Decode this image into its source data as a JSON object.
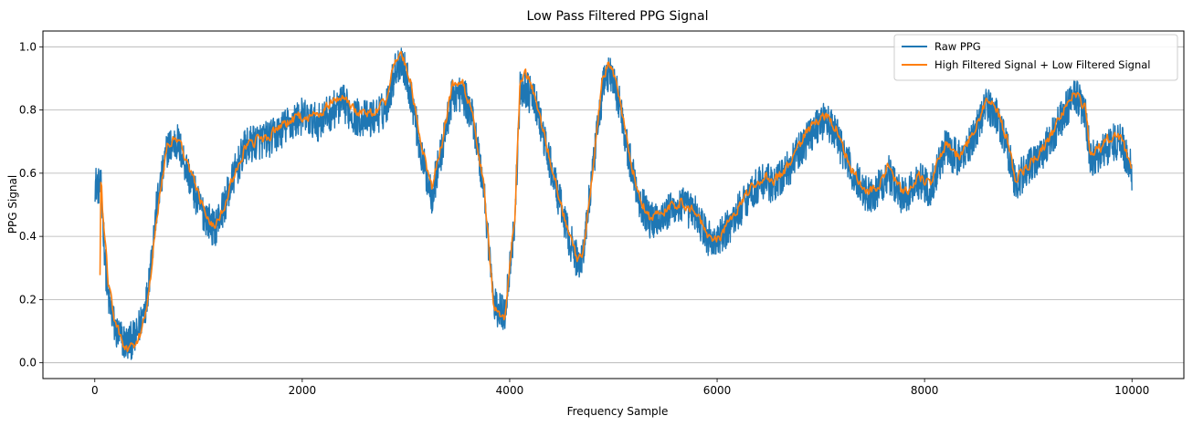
{
  "chart_data": {
    "type": "line",
    "title": "Low Pass Filtered PPG Signal",
    "xlabel": "Frequency Sample",
    "ylabel": "PPG Signal",
    "xlim": [
      -500,
      10500
    ],
    "ylim": [
      -0.05,
      1.05
    ],
    "xticks": [
      0,
      2000,
      4000,
      6000,
      8000,
      10000
    ],
    "yticks": [
      0.0,
      0.2,
      0.4,
      0.6,
      0.8,
      1.0
    ],
    "ytick_labels": [
      "0.0",
      "0.2",
      "0.4",
      "0.6",
      "0.8",
      "1.0"
    ],
    "grid": "horizontal",
    "legend_position": "top-right",
    "series": [
      {
        "name": "Raw PPG",
        "color": "#1f77b4",
        "noise_amplitude": 0.06,
        "x": [
          0,
          60,
          120,
          200,
          300,
          400,
          500,
          600,
          700,
          800,
          900,
          1000,
          1100,
          1150,
          1250,
          1350,
          1450,
          1550,
          1700,
          1850,
          2000,
          2150,
          2300,
          2400,
          2500,
          2650,
          2800,
          2900,
          2960,
          3050,
          3150,
          3250,
          3350,
          3450,
          3550,
          3650,
          3750,
          3850,
          3950,
          4050,
          4100,
          4150,
          4250,
          4350,
          4450,
          4550,
          4650,
          4700,
          4800,
          4900,
          4960,
          5050,
          5150,
          5250,
          5350,
          5500,
          5650,
          5800,
          5900,
          6000,
          6150,
          6300,
          6450,
          6550,
          6700,
          6850,
          6950,
          7050,
          7150,
          7300,
          7450,
          7550,
          7650,
          7800,
          7950,
          8050,
          8200,
          8350,
          8500,
          8600,
          8700,
          8800,
          8880,
          8950,
          9100,
          9250,
          9400,
          9450,
          9550,
          9600,
          9700,
          9800,
          9900,
          10000
        ],
        "y": [
          0.57,
          0.55,
          0.22,
          0.1,
          0.06,
          0.08,
          0.2,
          0.5,
          0.68,
          0.7,
          0.6,
          0.5,
          0.45,
          0.42,
          0.5,
          0.6,
          0.68,
          0.7,
          0.71,
          0.75,
          0.78,
          0.76,
          0.8,
          0.82,
          0.78,
          0.77,
          0.8,
          0.93,
          0.96,
          0.85,
          0.65,
          0.53,
          0.68,
          0.85,
          0.85,
          0.77,
          0.55,
          0.18,
          0.15,
          0.45,
          0.86,
          0.87,
          0.82,
          0.68,
          0.55,
          0.42,
          0.32,
          0.33,
          0.6,
          0.88,
          0.92,
          0.84,
          0.65,
          0.52,
          0.45,
          0.47,
          0.5,
          0.47,
          0.4,
          0.38,
          0.45,
          0.53,
          0.58,
          0.56,
          0.62,
          0.7,
          0.75,
          0.77,
          0.72,
          0.6,
          0.53,
          0.55,
          0.6,
          0.52,
          0.58,
          0.55,
          0.68,
          0.64,
          0.74,
          0.82,
          0.78,
          0.68,
          0.56,
          0.6,
          0.65,
          0.73,
          0.82,
          0.86,
          0.78,
          0.64,
          0.66,
          0.7,
          0.7,
          0.6
        ]
      },
      {
        "name": "High Filtered Signal + Low Filtered Signal",
        "color": "#ff7f0e",
        "noise_amplitude": 0.025,
        "x": [
          50,
          60,
          70,
          80,
          100,
          130,
          200,
          300,
          400,
          500,
          600,
          700,
          800,
          900,
          1000,
          1100,
          1150,
          1250,
          1350,
          1450,
          1550,
          1700,
          1850,
          2000,
          2150,
          2300,
          2400,
          2500,
          2650,
          2800,
          2900,
          2960,
          3050,
          3150,
          3250,
          3350,
          3450,
          3550,
          3650,
          3750,
          3850,
          3950,
          4050,
          4100,
          4150,
          4250,
          4350,
          4450,
          4550,
          4650,
          4700,
          4800,
          4900,
          4960,
          5050,
          5150,
          5250,
          5350,
          5500,
          5650,
          5800,
          5900,
          6000,
          6150,
          6300,
          6450,
          6550,
          6700,
          6850,
          6950,
          7050,
          7150,
          7300,
          7450,
          7550,
          7650,
          7800,
          7950,
          8050,
          8200,
          8350,
          8500,
          8600,
          8700,
          8800,
          8880,
          8950,
          9100,
          9250,
          9400,
          9450,
          9550,
          9600,
          9700,
          9800,
          9900,
          10000
        ],
        "y": [
          0.28,
          0.64,
          0.5,
          0.45,
          0.4,
          0.25,
          0.12,
          0.04,
          0.05,
          0.16,
          0.46,
          0.7,
          0.71,
          0.63,
          0.53,
          0.46,
          0.43,
          0.5,
          0.6,
          0.68,
          0.7,
          0.72,
          0.76,
          0.78,
          0.78,
          0.83,
          0.85,
          0.8,
          0.79,
          0.82,
          0.96,
          0.98,
          0.88,
          0.68,
          0.56,
          0.7,
          0.88,
          0.88,
          0.78,
          0.56,
          0.17,
          0.14,
          0.46,
          0.9,
          0.92,
          0.84,
          0.7,
          0.56,
          0.43,
          0.33,
          0.33,
          0.61,
          0.91,
          0.95,
          0.86,
          0.66,
          0.53,
          0.46,
          0.48,
          0.51,
          0.48,
          0.41,
          0.39,
          0.46,
          0.54,
          0.59,
          0.57,
          0.63,
          0.72,
          0.76,
          0.78,
          0.74,
          0.61,
          0.54,
          0.56,
          0.62,
          0.53,
          0.59,
          0.56,
          0.69,
          0.65,
          0.75,
          0.84,
          0.8,
          0.7,
          0.58,
          0.61,
          0.66,
          0.74,
          0.84,
          0.86,
          0.8,
          0.66,
          0.68,
          0.72,
          0.71,
          0.61
        ]
      }
    ]
  }
}
